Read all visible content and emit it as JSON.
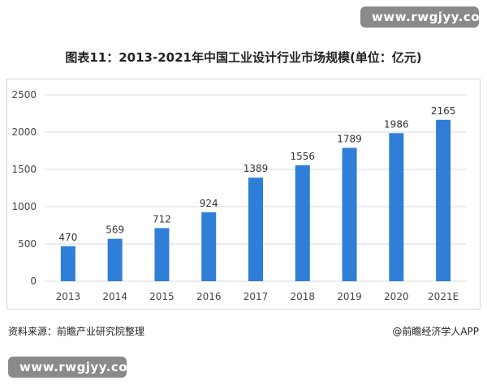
{
  "watermark": {
    "text": "www.rwgjyy.com"
  },
  "footer": {
    "source": "资料来源：前瞻产业研究院整理",
    "credit": "@前瞻经济学人APP"
  },
  "colors": {
    "bar": "#2f7ed8",
    "grid": "#d9d9d9",
    "axis_text": "#444444",
    "label_text": "#333333"
  },
  "chart_data": {
    "type": "bar",
    "title": "图表11：2013-2021年中国工业设计行业市场规模(单位：亿元)",
    "categories": [
      "2013",
      "2014",
      "2015",
      "2016",
      "2017",
      "2018",
      "2019",
      "2020",
      "2021E"
    ],
    "values": [
      470,
      569,
      712,
      924,
      1389,
      1556,
      1789,
      1986,
      2165
    ],
    "xlabel": "",
    "ylabel": "",
    "ylim": [
      0,
      2500
    ],
    "yticks": [
      "0",
      "500",
      "1000",
      "1500",
      "2000",
      "2500"
    ],
    "grid": true,
    "data_labels": true
  }
}
